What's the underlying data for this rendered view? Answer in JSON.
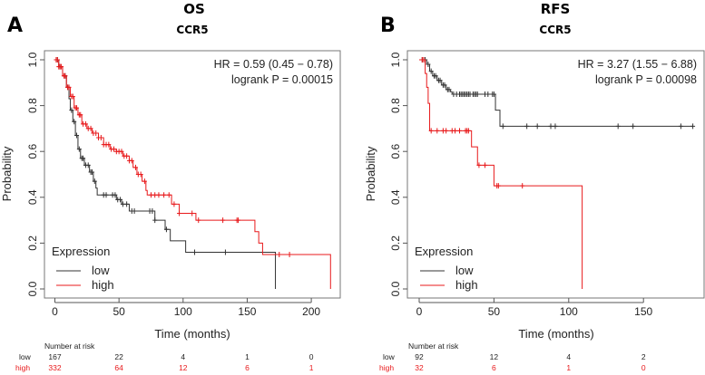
{
  "chart_data": [
    {
      "type": "line",
      "panel_label": "A",
      "title": "OS",
      "subtitle": "CCR5",
      "xlabel": "Time (months)",
      "ylabel": "Probability",
      "xlim": [
        0,
        215
      ],
      "ylim": [
        0,
        1
      ],
      "xticks": [
        0,
        50,
        100,
        150,
        200
      ],
      "yticks": [
        "0.0",
        "0.2",
        "0.4",
        "0.6",
        "0.8",
        "1.0"
      ],
      "stats": [
        "HR = 0.59 (0.45 − 0.78)",
        "logrank P = 0.00015"
      ],
      "legend": {
        "title": "Expression",
        "placement": "bottom-left"
      },
      "series": [
        {
          "name": "low",
          "color": "#333333",
          "steps": [
            [
              0,
              1
            ],
            [
              3,
              0.97
            ],
            [
              6,
              0.93
            ],
            [
              9,
              0.88
            ],
            [
              11,
              0.83
            ],
            [
              12,
              0.78
            ],
            [
              14,
              0.73
            ],
            [
              16,
              0.67
            ],
            [
              18,
              0.61
            ],
            [
              20,
              0.57
            ],
            [
              23,
              0.54
            ],
            [
              27,
              0.51
            ],
            [
              30,
              0.47
            ],
            [
              32,
              0.44
            ],
            [
              33,
              0.41
            ],
            [
              48,
              0.39
            ],
            [
              52,
              0.37
            ],
            [
              58,
              0.34
            ],
            [
              78,
              0.3
            ],
            [
              86,
              0.26
            ],
            [
              90,
              0.21
            ],
            [
              102,
              0.16
            ],
            [
              172,
              0
            ]
          ],
          "end": 172,
          "censors": [
            2,
            4,
            8,
            10,
            13,
            15,
            17,
            19,
            21,
            22,
            24,
            26,
            28,
            29,
            31,
            38,
            40,
            45,
            47,
            49,
            51,
            53,
            56,
            60,
            62,
            74,
            76,
            78,
            87,
            109,
            133
          ]
        },
        {
          "name": "high",
          "color": "#e8191b",
          "steps": [
            [
              0,
              1
            ],
            [
              3,
              0.97
            ],
            [
              6,
              0.93
            ],
            [
              9,
              0.88
            ],
            [
              12,
              0.84
            ],
            [
              15,
              0.79
            ],
            [
              18,
              0.76
            ],
            [
              21,
              0.72
            ],
            [
              25,
              0.7
            ],
            [
              29,
              0.68
            ],
            [
              34,
              0.66
            ],
            [
              38,
              0.63
            ],
            [
              43,
              0.61
            ],
            [
              48,
              0.6
            ],
            [
              53,
              0.58
            ],
            [
              58,
              0.56
            ],
            [
              61,
              0.53
            ],
            [
              64,
              0.5
            ],
            [
              68,
              0.47
            ],
            [
              71,
              0.43
            ],
            [
              72,
              0.41
            ],
            [
              91,
              0.37
            ],
            [
              97,
              0.33
            ],
            [
              110,
              0.3
            ],
            [
              156,
              0.25
            ],
            [
              159,
              0.2
            ],
            [
              162,
              0.15
            ],
            [
              215,
              0
            ]
          ],
          "end": 215,
          "censors": [
            1,
            2,
            3,
            4,
            5,
            7,
            8,
            10,
            11,
            13,
            14,
            16,
            17,
            19,
            20,
            22,
            24,
            26,
            28,
            30,
            32,
            34,
            36,
            38,
            40,
            42,
            44,
            46,
            48,
            50,
            52,
            54,
            56,
            58,
            60,
            63,
            65,
            67,
            70,
            75,
            78,
            81,
            85,
            89,
            93,
            97,
            107,
            112,
            131,
            142,
            143,
            175,
            183
          ]
        }
      ],
      "risk_table": {
        "header": "Number at risk",
        "times": [
          0,
          50,
          100,
          150,
          200
        ],
        "rows": [
          {
            "label": "low",
            "values": [
              "167",
              "22",
              "4",
              "1",
              "0"
            ]
          },
          {
            "label": "high",
            "values": [
              "332",
              "64",
              "12",
              "6",
              "1"
            ]
          }
        ]
      }
    },
    {
      "type": "line",
      "panel_label": "B",
      "title": "RFS",
      "subtitle": "CCR5",
      "xlabel": "Time (months)",
      "ylabel": "Probability",
      "xlim": [
        0,
        185
      ],
      "ylim": [
        0,
        1
      ],
      "xticks": [
        0,
        50,
        100,
        150
      ],
      "yticks": [
        "0.0",
        "0.2",
        "0.4",
        "0.6",
        "0.8",
        "1.0"
      ],
      "stats": [
        "HR = 3.27 (1.55 − 6.88)",
        "logrank P = 0.00098"
      ],
      "legend": {
        "title": "Expression",
        "placement": "bottom-left"
      },
      "series": [
        {
          "name": "low",
          "color": "#333333",
          "steps": [
            [
              0,
              1
            ],
            [
              5,
              0.98
            ],
            [
              7,
              0.95
            ],
            [
              9,
              0.93
            ],
            [
              12,
              0.91
            ],
            [
              15,
              0.89
            ],
            [
              18,
              0.87
            ],
            [
              21,
              0.86
            ],
            [
              22,
              0.85
            ],
            [
              51,
              0.78
            ],
            [
              54,
              0.71
            ]
          ],
          "end": 183,
          "censors": [
            2,
            3,
            4,
            6,
            8,
            10,
            11,
            13,
            14,
            16,
            17,
            19,
            20,
            23,
            25,
            27,
            28,
            29,
            30,
            31,
            32,
            33,
            34,
            36,
            37,
            38,
            39,
            44,
            46,
            49,
            50,
            56,
            72,
            79,
            88,
            91,
            133,
            143,
            175,
            183
          ]
        },
        {
          "name": "high",
          "color": "#e8191b",
          "steps": [
            [
              0,
              1
            ],
            [
              4,
              0.94
            ],
            [
              5,
              0.88
            ],
            [
              6,
              0.81
            ],
            [
              7,
              0.69
            ],
            [
              35,
              0.62
            ],
            [
              39,
              0.54
            ],
            [
              50,
              0.45
            ],
            [
              109,
              0
            ]
          ],
          "end": 109,
          "censors": [
            2,
            3,
            8,
            12,
            16,
            18,
            22,
            24,
            27,
            31,
            32,
            33,
            40,
            44,
            52,
            53,
            69
          ]
        }
      ],
      "risk_table": {
        "header": "Number at risk",
        "times": [
          0,
          50,
          100,
          150
        ],
        "rows": [
          {
            "label": "low",
            "values": [
              "92",
              "12",
              "4",
              "2"
            ]
          },
          {
            "label": "high",
            "values": [
              "32",
              "6",
              "1",
              "0"
            ]
          }
        ]
      }
    }
  ]
}
